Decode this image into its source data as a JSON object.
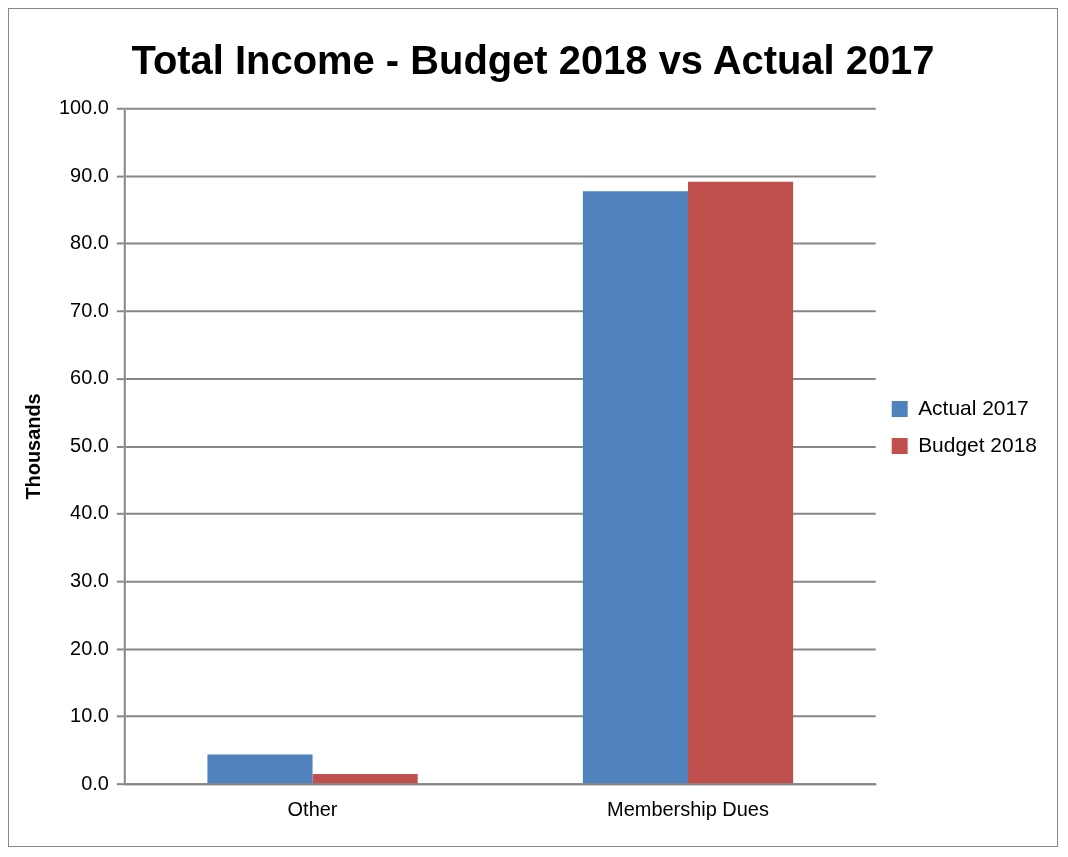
{
  "chart_data": {
    "type": "bar",
    "title": "Total Income - Budget 2018 vs Actual 2017",
    "ylabel": "Thousands",
    "categories": [
      "Other",
      "Membership Dues"
    ],
    "series": [
      {
        "name": "Actual 2017",
        "color": "#4f81bd",
        "values": [
          4.4,
          87.8
        ]
      },
      {
        "name": "Budget 2018",
        "color": "#c0504d",
        "values": [
          1.5,
          89.2
        ]
      }
    ],
    "ylim": [
      0,
      100
    ],
    "yticks": [
      {
        "value": 0,
        "label": "0.0"
      },
      {
        "value": 10,
        "label": "10.0"
      },
      {
        "value": 20,
        "label": "20.0"
      },
      {
        "value": 30,
        "label": "30.0"
      },
      {
        "value": 40,
        "label": "40.0"
      },
      {
        "value": 50,
        "label": "50.0"
      },
      {
        "value": 60,
        "label": "60.0"
      },
      {
        "value": 70,
        "label": "70.0"
      },
      {
        "value": 80,
        "label": "80.0"
      },
      {
        "value": 90,
        "label": "90.0"
      },
      {
        "value": 100,
        "label": "100.0"
      }
    ],
    "grid": "y",
    "legend": "right"
  }
}
